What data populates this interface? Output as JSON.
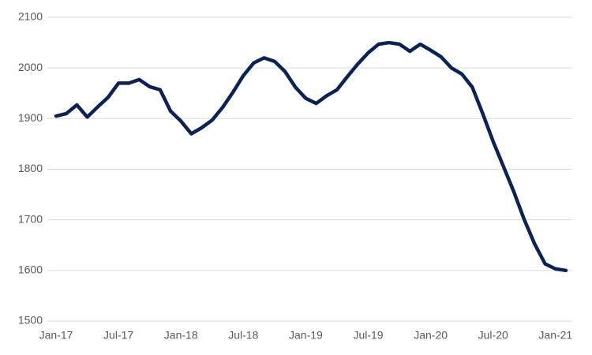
{
  "chart_data": {
    "type": "line",
    "categories": [
      "Jan-17",
      null,
      null,
      null,
      null,
      null,
      "Jul-17",
      null,
      null,
      null,
      null,
      null,
      "Jan-18",
      null,
      null,
      null,
      null,
      null,
      "Jul-18",
      null,
      null,
      null,
      null,
      null,
      "Jan-19",
      null,
      null,
      null,
      null,
      null,
      "Jul-19",
      null,
      null,
      null,
      null,
      null,
      "Jan-20",
      null,
      null,
      null,
      null,
      null,
      "Jul-20",
      null,
      null,
      null,
      null,
      null,
      "Jan-21",
      null
    ],
    "series": [
      {
        "color": "#0c2255",
        "values": [
          1905,
          1910,
          1927,
          1903,
          1923,
          1942,
          1970,
          1970,
          1977,
          1963,
          1957,
          1915,
          1895,
          1870,
          1882,
          1897,
          1922,
          1952,
          1985,
          2010,
          2020,
          2013,
          1993,
          1962,
          1940,
          1930,
          1945,
          1957,
          1983,
          2008,
          2030,
          2047,
          2050,
          2047,
          2033,
          2047,
          2035,
          2022,
          2000,
          1988,
          1962,
          1910,
          1855,
          1805,
          1755,
          1700,
          1652,
          1613,
          1603,
          1600
        ]
      }
    ],
    "ylim": [
      1500,
      2100
    ],
    "yticks": [
      1500,
      1600,
      1700,
      1800,
      1900,
      2000,
      2100
    ],
    "grid": true
  }
}
